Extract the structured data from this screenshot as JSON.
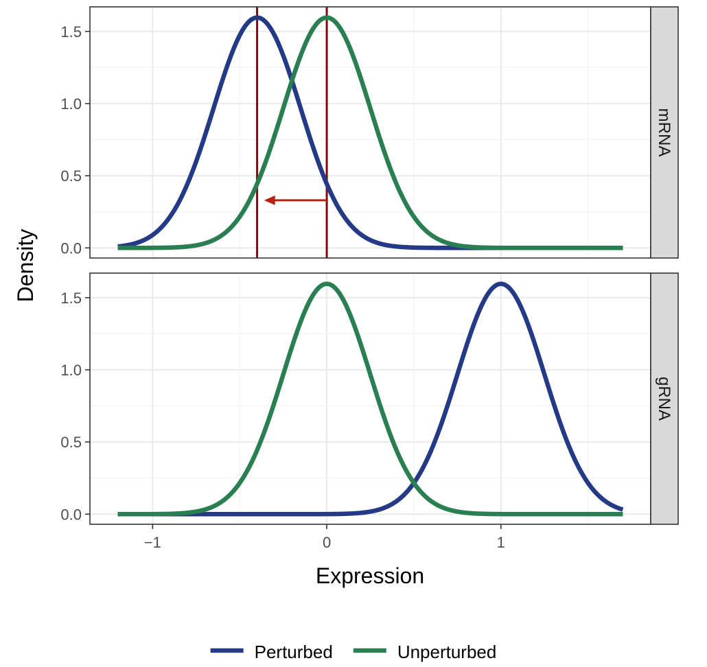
{
  "chart_data": {
    "type": "line",
    "subtype": "faceted density curves",
    "xlabel": "Expression",
    "ylabel": "Density",
    "xlim": [
      -1.36,
      1.86
    ],
    "ylim": [
      -0.07,
      1.67
    ],
    "x_ticks": [
      -1,
      0,
      1
    ],
    "x_tick_labels": [
      "−1",
      "0",
      "1"
    ],
    "y_ticks": [
      0.0,
      0.5,
      1.0,
      1.5
    ],
    "y_tick_labels": [
      "0.0",
      "0.5",
      "1.0",
      "1.5"
    ],
    "grid": true,
    "x_range": [
      -1.2,
      1.7
    ],
    "legend": {
      "position": "bottom",
      "entries": [
        {
          "label": "Perturbed",
          "color": "#253a86"
        },
        {
          "label": "Unperturbed",
          "color": "#2a7f52"
        }
      ]
    },
    "panels": [
      {
        "strip": "mRNA",
        "series": [
          {
            "name": "Perturbed",
            "color": "#253a86",
            "distribution": "normal",
            "mean": -0.4,
            "sd": 0.25
          },
          {
            "name": "Unperturbed",
            "color": "#2a7f52",
            "distribution": "normal",
            "mean": 0.0,
            "sd": 0.25
          }
        ],
        "vlines": [
          {
            "x": -0.4,
            "color": "#7d0a0a"
          },
          {
            "x": 0.0,
            "color": "#7d0a0a"
          }
        ],
        "arrow": {
          "x_from": 0.0,
          "x_to": -0.36,
          "y": 0.33,
          "color": "#b5220f"
        }
      },
      {
        "strip": "gRNA",
        "series": [
          {
            "name": "Perturbed",
            "color": "#253a86",
            "distribution": "normal",
            "mean": 1.0,
            "sd": 0.25
          },
          {
            "name": "Unperturbed",
            "color": "#2a7f52",
            "distribution": "normal",
            "mean": 0.0,
            "sd": 0.25
          }
        ],
        "vlines": [],
        "arrow": null
      }
    ]
  }
}
